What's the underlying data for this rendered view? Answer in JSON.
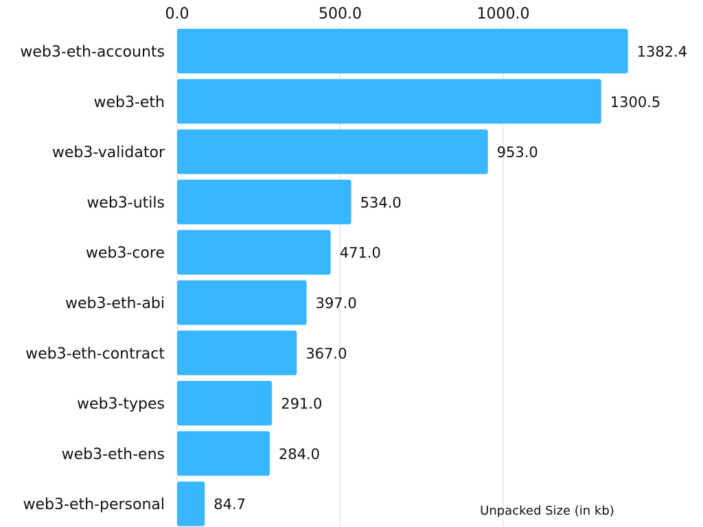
{
  "chart_data": {
    "type": "bar",
    "orientation": "horizontal",
    "categories": [
      "web3-eth-accounts",
      "web3-eth",
      "web3-validator",
      "web3-utils",
      "web3-core",
      "web3-eth-abi",
      "web3-eth-contract",
      "web3-types",
      "web3-eth-ens",
      "web3-eth-personal"
    ],
    "values": [
      1382.4,
      1300.5,
      953.0,
      534.0,
      471.0,
      397.0,
      367.0,
      291.0,
      284.0,
      84.7
    ],
    "value_labels": [
      "1382.4",
      "1300.5",
      "953.0",
      "534.0",
      "471.0",
      "397.0",
      "367.0",
      "291.0",
      "284.0",
      "84.7"
    ],
    "title": "",
    "xlabel": "Unpacked Size (in kb)",
    "ylabel": "",
    "xlim": [
      0,
      1400
    ],
    "x_ticks": [
      0,
      500,
      1000
    ],
    "x_tick_labels": [
      "0.0",
      "500.0",
      "1000.0"
    ],
    "x_axis_position": "top",
    "grid": "vertical",
    "bar_color": "#38B6FF",
    "grid_color": "#E5E5E5"
  }
}
